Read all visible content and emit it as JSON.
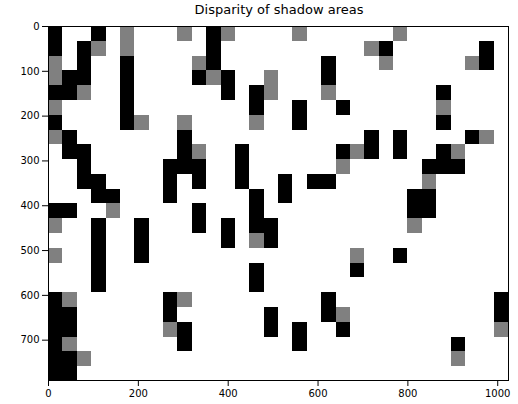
{
  "chart_data": {
    "type": "heatmap",
    "title": "Disparity of shadow areas",
    "xlim": [
      0,
      1024
    ],
    "ylim": [
      790,
      0
    ],
    "xticks": [
      0,
      200,
      400,
      600,
      800,
      1000
    ],
    "yticks": [
      0,
      100,
      200,
      300,
      400,
      500,
      600,
      700
    ],
    "x_bins": [
      0,
      32,
      64,
      96,
      128,
      160,
      192,
      224,
      256,
      288,
      320,
      352,
      384,
      416,
      448,
      480,
      512,
      544,
      576,
      608,
      640,
      672,
      704,
      736,
      768,
      800,
      832,
      864,
      896,
      928,
      960,
      992,
      1024
    ],
    "y_bins": [
      0,
      33,
      66,
      99,
      132,
      165,
      198,
      231,
      264,
      297,
      330,
      363,
      396,
      429,
      462,
      495,
      528,
      561,
      594,
      627,
      660,
      693,
      726,
      759,
      790
    ],
    "color_range": [
      0,
      1
    ],
    "cells": [
      [
        1,
        0,
        0,
        1,
        0,
        0.5,
        0,
        0,
        0,
        0.5,
        0,
        1,
        0.5,
        0,
        0,
        0,
        0,
        0.5,
        0,
        0,
        0,
        0,
        0,
        0,
        0.5,
        0,
        0,
        0,
        0,
        0,
        0,
        0
      ],
      [
        1,
        0,
        1,
        0.5,
        0,
        0.5,
        0,
        0,
        0,
        0,
        0,
        1,
        0,
        0,
        0,
        0,
        0,
        0,
        0,
        0,
        0,
        0,
        0.5,
        1,
        0,
        0,
        0,
        0,
        0,
        0,
        1,
        0
      ],
      [
        0.5,
        0,
        1,
        0,
        0,
        1,
        0,
        0,
        0,
        0,
        0.5,
        1,
        0,
        0,
        0,
        0,
        0,
        0,
        0,
        1,
        0,
        0,
        0,
        0.5,
        0,
        0,
        0,
        0,
        0,
        0.5,
        1,
        0
      ],
      [
        0.5,
        1,
        1,
        0,
        0,
        1,
        0,
        0,
        0,
        0,
        1,
        0.5,
        1,
        0,
        0,
        0.5,
        0,
        0,
        0,
        1,
        0,
        0,
        0,
        0,
        0,
        0,
        0,
        0,
        0,
        0,
        0,
        0
      ],
      [
        1,
        1,
        0.5,
        0,
        0,
        1,
        0,
        0,
        0,
        0,
        0,
        0,
        1,
        0,
        1,
        0.5,
        0,
        0,
        0,
        0.5,
        0,
        0,
        0,
        0,
        0,
        0,
        0,
        1,
        0,
        0,
        0,
        0
      ],
      [
        0.5,
        0,
        0,
        0,
        0,
        1,
        0,
        0,
        0,
        0,
        0,
        0,
        0,
        0,
        1,
        0,
        0,
        1,
        0,
        0,
        1,
        0,
        0,
        0,
        0,
        0,
        0,
        0.5,
        0,
        0,
        0,
        0
      ],
      [
        1,
        0,
        0,
        0,
        0,
        1,
        0.5,
        0,
        0,
        0.5,
        0,
        0,
        0,
        0,
        0.5,
        0,
        0,
        1,
        0,
        0,
        0,
        0,
        0,
        0,
        0,
        0,
        0,
        1,
        0,
        0,
        0,
        0
      ],
      [
        0.5,
        1,
        0,
        0,
        0,
        0,
        0,
        0,
        0,
        1,
        0,
        0,
        0,
        0,
        0,
        0,
        0,
        0,
        0,
        0,
        0,
        0,
        1,
        0,
        1,
        0,
        0,
        0,
        0,
        1,
        0.5,
        0
      ],
      [
        0,
        1,
        1,
        0,
        0,
        0,
        0,
        0,
        0,
        1,
        0.5,
        0,
        0,
        1,
        0,
        0,
        0,
        0,
        0,
        0,
        1,
        0.5,
        1,
        0,
        1,
        0,
        0,
        1,
        0.5,
        0,
        0,
        0
      ],
      [
        0,
        0,
        1,
        0,
        0,
        0,
        0,
        0,
        1,
        1,
        1,
        0,
        0,
        1,
        0,
        0,
        0,
        0,
        0,
        0,
        0.5,
        0,
        0,
        0,
        0,
        0,
        1,
        1,
        1,
        0,
        0,
        0
      ],
      [
        0,
        0,
        1,
        1,
        0,
        0,
        0,
        0,
        1,
        0,
        1,
        0,
        0,
        1,
        0,
        0,
        1,
        0,
        1,
        1,
        0,
        0,
        0,
        0,
        0,
        0,
        0.5,
        0,
        0,
        0,
        0,
        0
      ],
      [
        0,
        0,
        0,
        1,
        1,
        0,
        0,
        0,
        1,
        0,
        0,
        0,
        0,
        0,
        1,
        0,
        1,
        0,
        0,
        0,
        0,
        0,
        0,
        0,
        0,
        1,
        1,
        0,
        0,
        0,
        0,
        0
      ],
      [
        1,
        1,
        0,
        0,
        0.5,
        0,
        0,
        0,
        0,
        0,
        1,
        0,
        0,
        0,
        1,
        0,
        0,
        0,
        0,
        0,
        0,
        0,
        0,
        0,
        0,
        1,
        1,
        0,
        0,
        0,
        0,
        0
      ],
      [
        0.5,
        0,
        0,
        1,
        0,
        0,
        1,
        0,
        0,
        0,
        1,
        0,
        1,
        0,
        1,
        1,
        0,
        0,
        0,
        0,
        0,
        0,
        0,
        0,
        0,
        0.5,
        0,
        0,
        0,
        0,
        0,
        0
      ],
      [
        0,
        0,
        0,
        1,
        0,
        0,
        1,
        0,
        0,
        0,
        0,
        0,
        1,
        0,
        0.5,
        1,
        0,
        0,
        0,
        0,
        0,
        0,
        0,
        0,
        0,
        0,
        0,
        0,
        0,
        0,
        0,
        0
      ],
      [
        0.5,
        0,
        0,
        1,
        0,
        0,
        1,
        0,
        0,
        0,
        0,
        0,
        0,
        0,
        0,
        0,
        0,
        0,
        0,
        0,
        0,
        0.5,
        0,
        0,
        1,
        0,
        0,
        0,
        0,
        0,
        0,
        0
      ],
      [
        0,
        0,
        0,
        1,
        0,
        0,
        0,
        0,
        0,
        0,
        0,
        0,
        0,
        0,
        1,
        0,
        0,
        0,
        0,
        0,
        0,
        1,
        0,
        0,
        0,
        0,
        0,
        0,
        0,
        0,
        0,
        0
      ],
      [
        0,
        0,
        0,
        1,
        0,
        0,
        0,
        0,
        0,
        0,
        0,
        0,
        0,
        0,
        1,
        0,
        0,
        0,
        0,
        0,
        0,
        0,
        0,
        0,
        0,
        0,
        0,
        0,
        0,
        0,
        0,
        0
      ],
      [
        1,
        0.5,
        0,
        0,
        0,
        0,
        0,
        0,
        1,
        0.5,
        0,
        0,
        0,
        0,
        0,
        0,
        0,
        0,
        0,
        1,
        0,
        0,
        0,
        0,
        0,
        0,
        0,
        0,
        0,
        0,
        0,
        1
      ],
      [
        1,
        1,
        0,
        0,
        0,
        0,
        0,
        0,
        1,
        0,
        0,
        0,
        0,
        0,
        0,
        1,
        0,
        0,
        0,
        1,
        0.5,
        0,
        0,
        0,
        0,
        0,
        0,
        0,
        0,
        0,
        0,
        1
      ],
      [
        1,
        1,
        0,
        0,
        0,
        0,
        0,
        0,
        0.5,
        1,
        0,
        0,
        0,
        0,
        0,
        1,
        0,
        1,
        0,
        0,
        1,
        0,
        0,
        0,
        0,
        0,
        0,
        0,
        0,
        0,
        0,
        0.5
      ],
      [
        1,
        0.5,
        0,
        0,
        0,
        0,
        0,
        0,
        0,
        1,
        0,
        0,
        0,
        0,
        0,
        0,
        0,
        1,
        0,
        0,
        0,
        0,
        0,
        0,
        0,
        0,
        0,
        0,
        1,
        0,
        0,
        0
      ],
      [
        1,
        1,
        0.5,
        0,
        0,
        0,
        0,
        0,
        0,
        0,
        0,
        0,
        0,
        0,
        0,
        0,
        0,
        0,
        0,
        0,
        0,
        0,
        0,
        0,
        0,
        0,
        0,
        0,
        0.5,
        0,
        0,
        0
      ],
      [
        1,
        1,
        0,
        0,
        0,
        0,
        0,
        0,
        0,
        0,
        0,
        0,
        0,
        0,
        0,
        0,
        0,
        0,
        0,
        0,
        0,
        0,
        0,
        0,
        0,
        0,
        0,
        0,
        0,
        0,
        0,
        0
      ]
    ]
  }
}
